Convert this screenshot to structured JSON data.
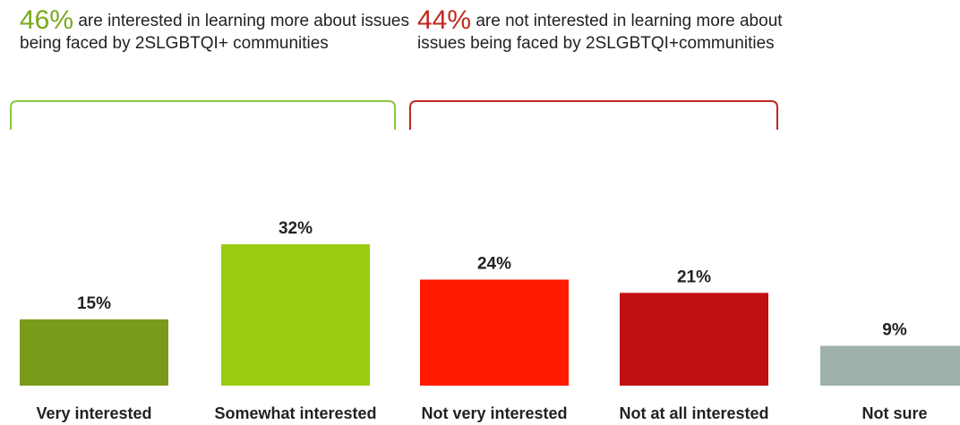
{
  "groups": {
    "interested": {
      "pct": "46%",
      "text": " are interested in learning more about issues being faced by 2SLGBTQI+ communities",
      "color": "#7aa81e"
    },
    "not_interested": {
      "pct": "44%",
      "text": " are not interested in learning more about issues being faced by 2SLGBTQI+communities",
      "color": "#c0281c"
    }
  },
  "chart_data": {
    "type": "bar",
    "categories": [
      "Very interested",
      "Somewhat interested",
      "Not very interested",
      "Not at all interested",
      "Not sure"
    ],
    "values": [
      15,
      32,
      24,
      21,
      9
    ],
    "value_labels": [
      "15%",
      "32%",
      "24%",
      "21%",
      "9%"
    ],
    "colors": [
      "#7a9a1a",
      "#9acd10",
      "#ff1a00",
      "#c01010",
      "#9fb0ad"
    ],
    "ylim": [
      0,
      35
    ],
    "grid": false,
    "legend": "none"
  }
}
